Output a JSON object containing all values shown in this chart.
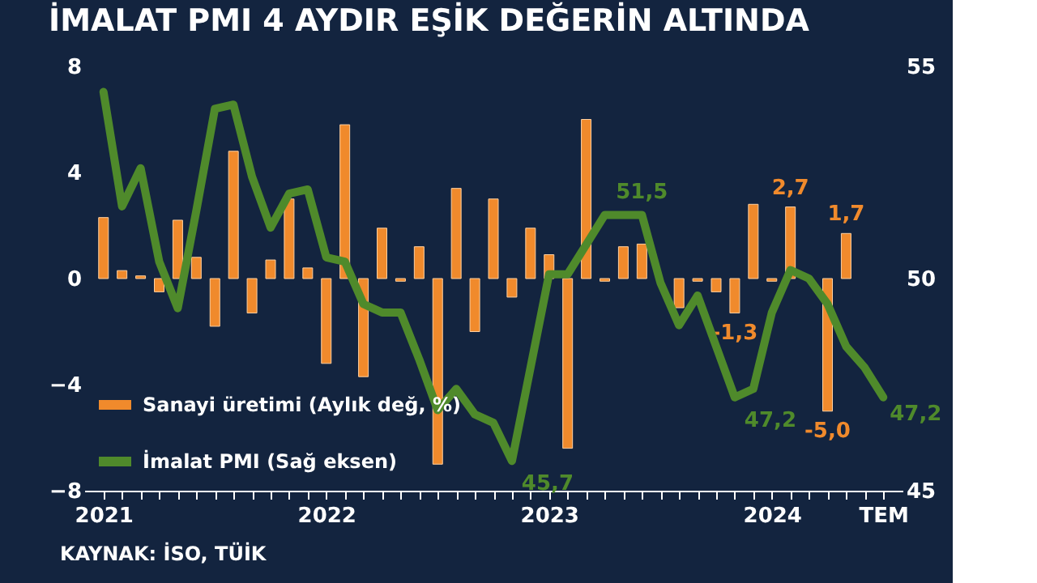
{
  "chart_data": {
    "type": "bar",
    "title": "İMALAT PMI 4 AYDIR EŞİK DEĞERİN ALTINDA",
    "categories": [
      "2021",
      null,
      null,
      null,
      null,
      null,
      null,
      null,
      null,
      null,
      null,
      null,
      "2022",
      null,
      null,
      null,
      null,
      null,
      null,
      null,
      null,
      null,
      null,
      null,
      "2023",
      null,
      null,
      null,
      null,
      null,
      null,
      null,
      null,
      null,
      null,
      null,
      "2024",
      null,
      null,
      null,
      null,
      null,
      "TEM"
    ],
    "series": [
      {
        "name": "Sanayi üretimi (Aylık değ, %)",
        "type": "bar",
        "color": "#f08a2c",
        "values": [
          2.3,
          0.3,
          0.1,
          -0.5,
          2.2,
          0.8,
          -1.8,
          4.8,
          -1.3,
          0.7,
          3.0,
          0.4,
          -3.2,
          5.8,
          -3.7,
          1.9,
          -0.1,
          1.2,
          -7.0,
          3.4,
          -2.0,
          3.0,
          -0.7,
          1.9,
          0.9,
          -6.4,
          6.0,
          -0.1,
          1.2,
          1.3,
          null,
          -1.1,
          -0.1,
          -0.5,
          -1.3,
          2.8,
          -0.1,
          2.7,
          null,
          -5.0,
          1.7,
          null,
          null
        ],
        "value_labels": [
          null,
          null,
          null,
          null,
          null,
          null,
          null,
          null,
          null,
          null,
          null,
          null,
          null,
          null,
          null,
          null,
          null,
          null,
          null,
          null,
          null,
          null,
          null,
          null,
          null,
          null,
          null,
          null,
          null,
          null,
          null,
          null,
          null,
          null,
          "-1,3",
          null,
          null,
          "2,7",
          null,
          "-5,0",
          "1,7",
          null,
          null
        ]
      },
      {
        "name": "İmalat PMI (Sağ eksen)",
        "type": "line",
        "axis": "y2",
        "color": "#4f8a2b",
        "values": [
          54.4,
          51.7,
          52.6,
          50.4,
          49.3,
          51.6,
          54.0,
          54.1,
          52.4,
          51.2,
          52.0,
          52.1,
          50.5,
          50.4,
          49.4,
          49.2,
          49.2,
          48.1,
          46.9,
          47.4,
          46.8,
          46.6,
          45.7,
          47.9,
          50.1,
          50.1,
          50.8,
          51.5,
          51.5,
          51.5,
          49.9,
          48.9,
          49.6,
          48.4,
          47.2,
          47.4,
          49.2,
          50.2,
          50.0,
          49.4,
          48.4,
          47.9,
          47.2
        ],
        "value_labels": [
          null,
          null,
          null,
          null,
          null,
          null,
          null,
          null,
          null,
          null,
          null,
          null,
          null,
          null,
          null,
          null,
          null,
          null,
          null,
          null,
          null,
          null,
          "45,7",
          null,
          null,
          null,
          null,
          null,
          null,
          "51,5",
          null,
          null,
          null,
          null,
          "47,2",
          null,
          null,
          null,
          null,
          null,
          null,
          null,
          "47,2"
        ]
      }
    ],
    "ylim": [
      -8,
      8
    ],
    "yticks": [
      -8,
      -4,
      0,
      4,
      8
    ],
    "y2lim": [
      45,
      55
    ],
    "y2ticks": [
      45,
      50,
      55
    ],
    "legend": "bottom left",
    "grid": false,
    "annotations": [
      "KAYNAK: İSO, TÜİK"
    ]
  }
}
